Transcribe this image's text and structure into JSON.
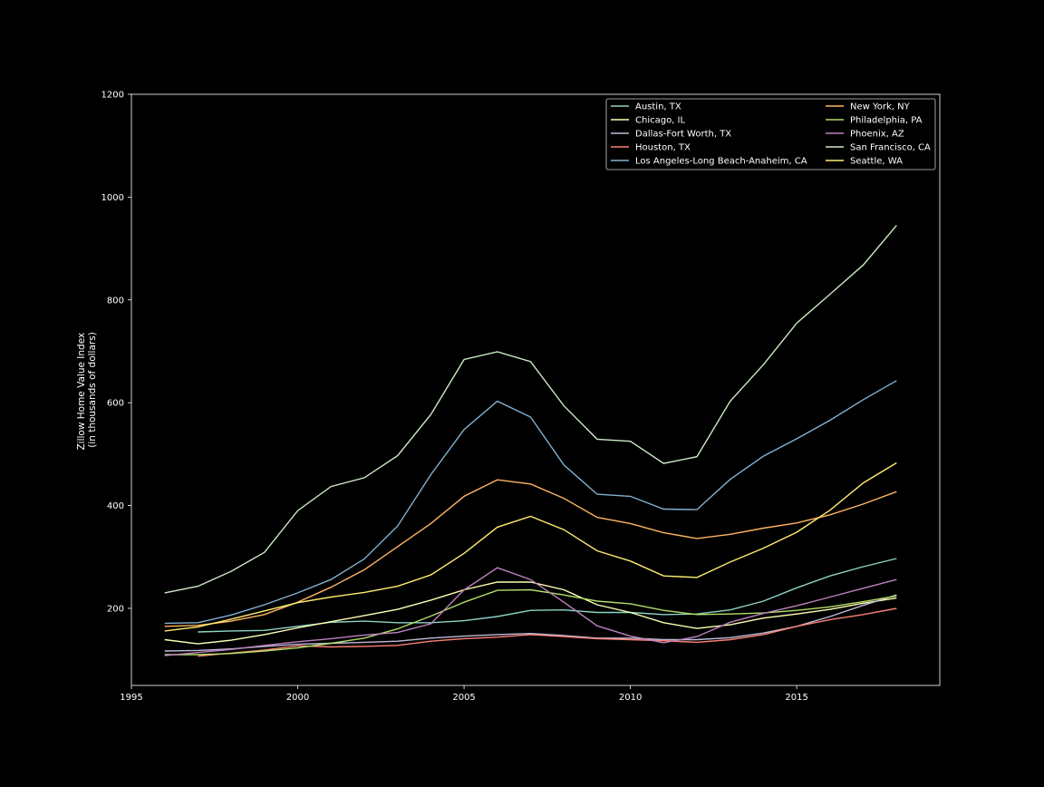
{
  "chart_data": {
    "type": "line",
    "title": "",
    "xlabel": "",
    "ylabel": "Zillow Home Value Index",
    "ylabel_line2": "(in thousands of dollars)",
    "xlim": [
      1995,
      2019.3
    ],
    "ylim": [
      50,
      1200
    ],
    "xticks": [
      1995,
      2000,
      2005,
      2010,
      2015
    ],
    "yticks": [
      200,
      400,
      600,
      800,
      1000,
      1200
    ],
    "grid": false,
    "legend_placement": "top-right",
    "background": "#000000",
    "axes_color": "#ffffff",
    "series": [
      {
        "name": "Austin, TX",
        "color": "#8dd3c7",
        "x": [
          1997,
          1998,
          1999,
          2000,
          2001,
          2002,
          2003,
          2004,
          2005,
          2006,
          2007,
          2008,
          2009,
          2010,
          2011,
          2012,
          2013,
          2014,
          2015,
          2016,
          2017,
          2018
        ],
        "values": [
          154,
          156,
          157,
          165,
          173,
          175,
          172,
          172,
          176,
          184,
          196,
          197,
          192,
          192,
          188,
          189,
          197,
          214,
          240,
          263,
          281,
          297
        ]
      },
      {
        "name": "Chicago, IL",
        "color": "#feffb3",
        "x": [
          1996,
          1997,
          1998,
          1999,
          2000,
          2001,
          2002,
          2003,
          2004,
          2005,
          2006,
          2007,
          2008,
          2009,
          2010,
          2011,
          2012,
          2013,
          2014,
          2015,
          2016,
          2017,
          2018
        ],
        "values": [
          139,
          131,
          138,
          149,
          162,
          174,
          186,
          198,
          216,
          236,
          251,
          251,
          236,
          207,
          192,
          172,
          161,
          168,
          181,
          189,
          198,
          210,
          220
        ]
      },
      {
        "name": "Dallas-Fort Worth, TX",
        "color": "#bfbbd9",
        "x": [
          1996,
          1997,
          1998,
          1999,
          2000,
          2001,
          2002,
          2003,
          2004,
          2005,
          2006,
          2007,
          2008,
          2009,
          2010,
          2011,
          2012,
          2013,
          2014,
          2015,
          2016,
          2017,
          2018
        ],
        "values": [
          117,
          118,
          121,
          126,
          130,
          132,
          134,
          136,
          142,
          146,
          149,
          151,
          147,
          142,
          142,
          139,
          139,
          143,
          152,
          165,
          184,
          206,
          226
        ]
      },
      {
        "name": "Houston, TX",
        "color": "#fa8174",
        "x": [
          1997,
          1998,
          1999,
          2000,
          2001,
          2002,
          2003,
          2004,
          2005,
          2006,
          2007,
          2008,
          2009,
          2010,
          2011,
          2012,
          2013,
          2014,
          2015,
          2016,
          2017,
          2018
        ],
        "values": [
          107,
          113,
          119,
          127,
          125,
          126,
          128,
          136,
          141,
          144,
          149,
          145,
          141,
          139,
          137,
          134,
          139,
          149,
          165,
          178,
          188,
          200
        ]
      },
      {
        "name": "Los Angeles-Long Beach-Anaheim, CA",
        "color": "#81b1d2",
        "x": [
          1996,
          1997,
          1998,
          1999,
          2000,
          2001,
          2002,
          2003,
          2004,
          2005,
          2006,
          2007,
          2008,
          2009,
          2010,
          2011,
          2012,
          2013,
          2014,
          2015,
          2016,
          2017,
          2018
        ],
        "values": [
          171,
          172,
          187,
          207,
          230,
          256,
          296,
          360,
          460,
          548,
          603,
          572,
          479,
          422,
          418,
          393,
          392,
          451,
          496,
          530,
          566,
          606,
          643
        ]
      },
      {
        "name": "New York, NY",
        "color": "#fdb462",
        "x": [
          1996,
          1997,
          1998,
          1999,
          2000,
          2001,
          2002,
          2003,
          2004,
          2005,
          2006,
          2007,
          2008,
          2009,
          2010,
          2011,
          2012,
          2013,
          2014,
          2015,
          2016,
          2017,
          2018
        ],
        "values": [
          165,
          167,
          175,
          188,
          212,
          241,
          275,
          320,
          365,
          418,
          450,
          442,
          414,
          377,
          365,
          347,
          336,
          344,
          356,
          366,
          382,
          403,
          427
        ]
      },
      {
        "name": "Philadelphia, PA",
        "color": "#b3de69",
        "x": [
          1996,
          1997,
          1998,
          1999,
          2000,
          2001,
          2002,
          2003,
          2004,
          2005,
          2006,
          2007,
          2008,
          2009,
          2010,
          2011,
          2012,
          2013,
          2014,
          2015,
          2016,
          2017,
          2018
        ],
        "values": [
          110,
          110,
          112,
          117,
          123,
          132,
          142,
          160,
          185,
          212,
          235,
          236,
          226,
          214,
          209,
          196,
          188,
          189,
          191,
          196,
          203,
          213,
          224
        ]
      },
      {
        "name": "Phoenix, AZ",
        "color": "#bc82bd",
        "x": [
          1996,
          1997,
          1998,
          1999,
          2000,
          2001,
          2002,
          2003,
          2004,
          2005,
          2006,
          2007,
          2008,
          2009,
          2010,
          2011,
          2012,
          2013,
          2014,
          2015,
          2016,
          2017,
          2018
        ],
        "values": [
          108,
          114,
          120,
          128,
          135,
          141,
          148,
          153,
          170,
          236,
          279,
          256,
          212,
          166,
          146,
          133,
          145,
          173,
          190,
          205,
          222,
          239,
          256
        ]
      },
      {
        "name": "San Francisco, CA",
        "color": "#ccebc4",
        "x": [
          1996,
          1997,
          1998,
          1999,
          2000,
          2001,
          2002,
          2003,
          2004,
          2005,
          2006,
          2007,
          2008,
          2009,
          2010,
          2011,
          2012,
          2013,
          2014,
          2015,
          2016,
          2017,
          2018
        ],
        "values": [
          230,
          243,
          272,
          309,
          390,
          437,
          454,
          497,
          577,
          684,
          699,
          680,
          594,
          529,
          525,
          482,
          495,
          603,
          674,
          755,
          811,
          868,
          945
        ]
      },
      {
        "name": "Seattle, WA",
        "color": "#ffed6f",
        "x": [
          1996,
          1997,
          1998,
          1999,
          2000,
          2001,
          2002,
          2003,
          2004,
          2005,
          2006,
          2007,
          2008,
          2009,
          2010,
          2011,
          2012,
          2013,
          2014,
          2015,
          2016,
          2017,
          2018
        ],
        "values": [
          156,
          164,
          179,
          195,
          211,
          222,
          231,
          243,
          265,
          307,
          358,
          379,
          353,
          312,
          292,
          263,
          260,
          290,
          317,
          348,
          391,
          444,
          483
        ]
      }
    ]
  }
}
